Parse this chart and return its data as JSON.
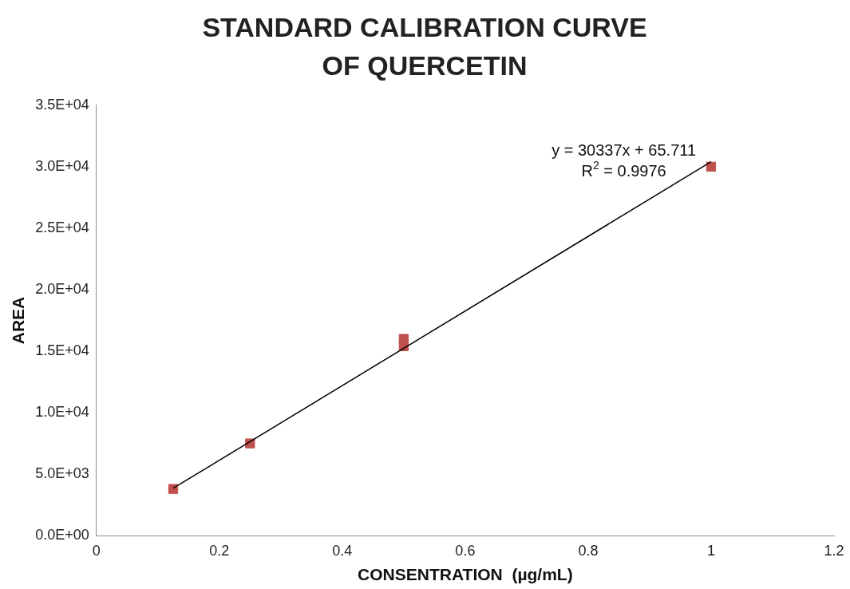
{
  "chart_data": {
    "type": "scatter",
    "title": "STANDARD CALIBRATION CURVE OF QUERCETIN",
    "xlabel": "CONSENTRATION  (µg/mL)",
    "ylabel": "AREA",
    "series": [
      {
        "type": "scatter",
        "color": "#c0504d",
        "x": [
          0.125,
          0.25,
          0.5,
          0.5,
          1
        ],
        "values": [
          3800,
          7500,
          16000,
          15400,
          30000
        ],
        "marker": "square"
      },
      {
        "type": "line",
        "color": "#000000",
        "x": [
          0.125,
          1
        ],
        "values": [
          3860,
          30400
        ],
        "marker": "none"
      }
    ],
    "annotations": [
      "y = 30337x + 65.711",
      "R$^{2}$ = 0.9976"
    ],
    "xlim": [
      0,
      1.2
    ],
    "xticks": [
      0,
      0.2,
      0.4,
      0.6,
      0.8,
      1,
      1.2
    ],
    "ylim": [
      0,
      35000
    ],
    "yticks": [
      {
        "value": 0,
        "label": "0.0E+00"
      },
      {
        "value": 5000,
        "label": "5.0E+03"
      },
      {
        "value": 10000,
        "label": "1.0E+04"
      },
      {
        "value": 15000,
        "label": "1.5E+04"
      },
      {
        "value": 20000,
        "label": "2.0E+04"
      },
      {
        "value": 25000,
        "label": "2.5E+04"
      },
      {
        "value": 30000,
        "label": "3.0E+04"
      },
      {
        "value": 35000,
        "label": "3.5E+04"
      }
    ],
    "grid": false,
    "legend": false
  }
}
